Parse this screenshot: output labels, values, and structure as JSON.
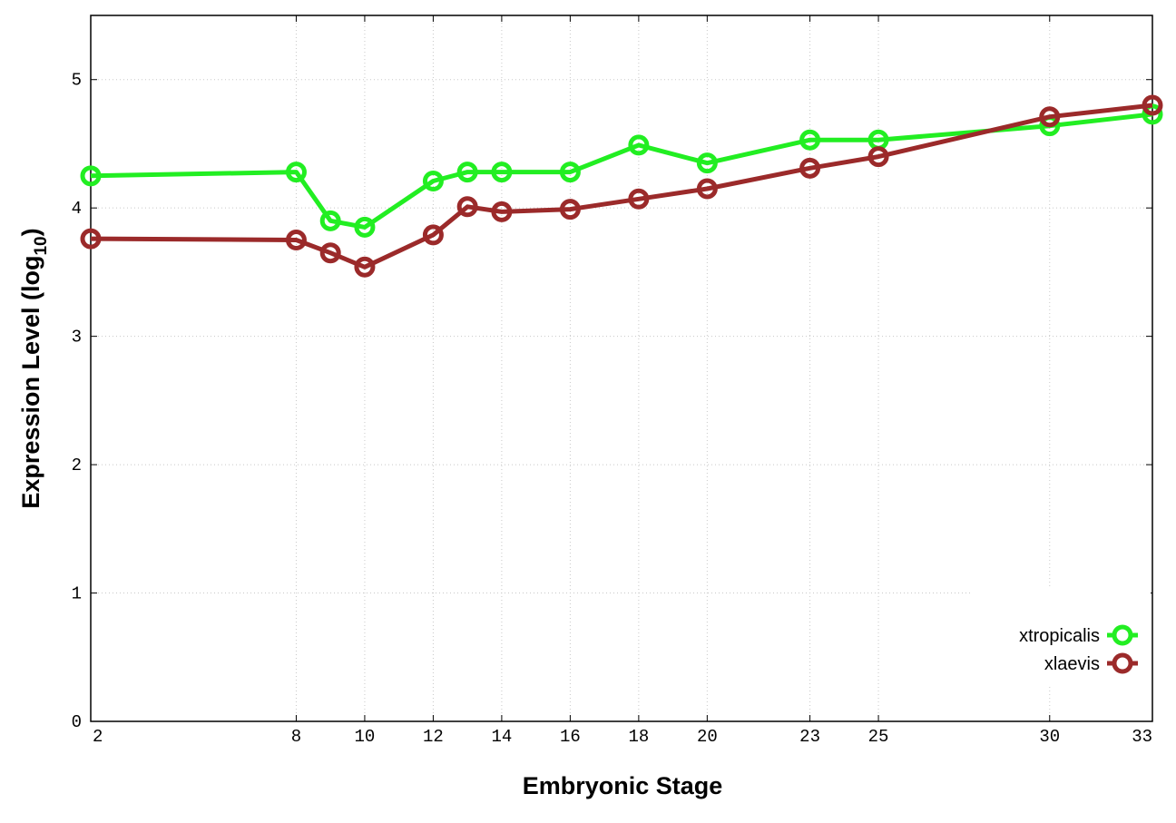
{
  "chart_data": {
    "type": "line",
    "xlabel": "Embryonic Stage",
    "ylabel_main": "Expression Level (log",
    "ylabel_sub": "10",
    "ylabel_close": ")",
    "x_categories": [
      "2",
      "8",
      "9",
      "10",
      "12",
      "13",
      "14",
      "16",
      "18",
      "20",
      "23",
      "25",
      "30",
      "33"
    ],
    "x_tick_labels": [
      "2",
      "8",
      "10",
      "12",
      "14",
      "16",
      "18",
      "20",
      "23",
      "25",
      "30",
      "33"
    ],
    "y_ticks": [
      "0",
      "1",
      "2",
      "3",
      "4",
      "5"
    ],
    "ylim": [
      0,
      5.5
    ],
    "grid": true,
    "legend_position": "bottom-right",
    "series": [
      {
        "name": "xtropicalis",
        "color": "#22ee22",
        "x": [
          "2",
          "8",
          "9",
          "10",
          "12",
          "13",
          "14",
          "16",
          "18",
          "20",
          "23",
          "25",
          "30",
          "33"
        ],
        "values": [
          4.25,
          4.28,
          3.9,
          3.85,
          4.21,
          4.28,
          4.28,
          4.28,
          4.49,
          4.35,
          4.53,
          4.53,
          4.64,
          4.73
        ]
      },
      {
        "name": "xlaevis",
        "color": "#9b2a2a",
        "x": [
          "2",
          "8",
          "9",
          "10",
          "12",
          "13",
          "14",
          "16",
          "18",
          "20",
          "23",
          "25",
          "30",
          "33"
        ],
        "values": [
          3.76,
          3.75,
          3.65,
          3.54,
          3.79,
          4.01,
          3.97,
          3.99,
          4.07,
          4.15,
          4.31,
          4.4,
          4.71,
          4.8
        ]
      }
    ]
  }
}
